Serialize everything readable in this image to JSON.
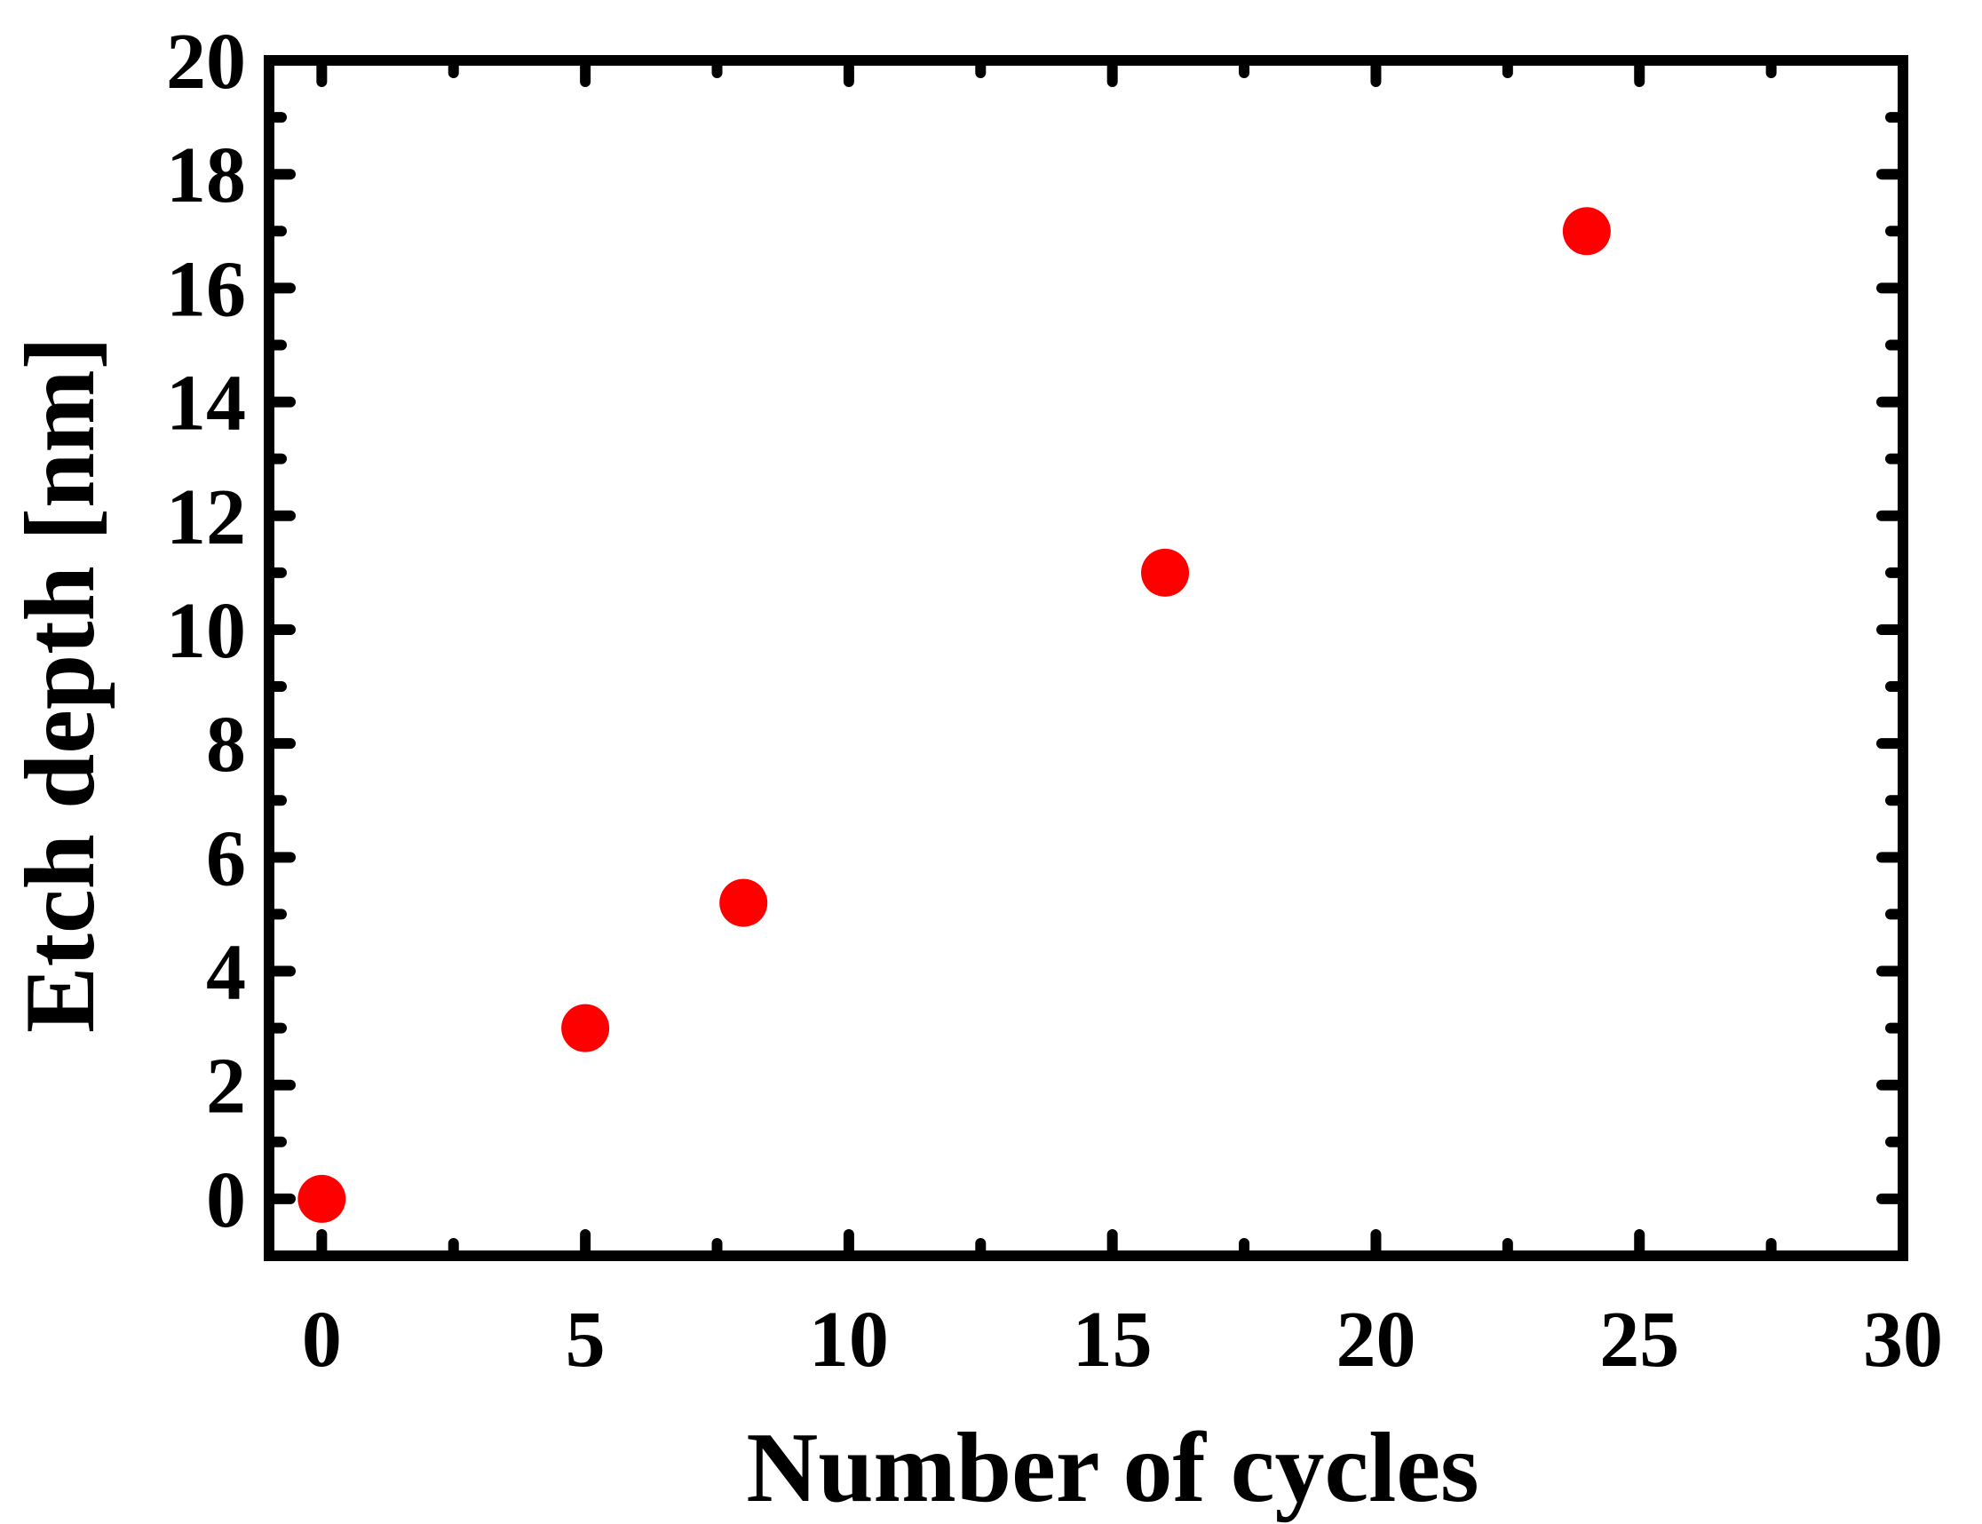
{
  "chart_data": {
    "type": "scatter",
    "title": "",
    "xlabel": "Number of cycles",
    "ylabel": "Etch depth [nm]",
    "xlim": [
      -1,
      30
    ],
    "ylim": [
      -1,
      20
    ],
    "x_ticks": [
      0,
      5,
      10,
      15,
      20,
      25,
      30
    ],
    "y_ticks": [
      0,
      2,
      4,
      6,
      8,
      10,
      12,
      14,
      16,
      18,
      20
    ],
    "grid": false,
    "legend": "none",
    "series": [
      {
        "color": "#ff0000",
        "marker": "circle",
        "x": [
          0,
          5,
          8,
          16,
          24
        ],
        "y": [
          0,
          3,
          5.2,
          11,
          17
        ]
      }
    ],
    "axis_color": "#000000"
  }
}
